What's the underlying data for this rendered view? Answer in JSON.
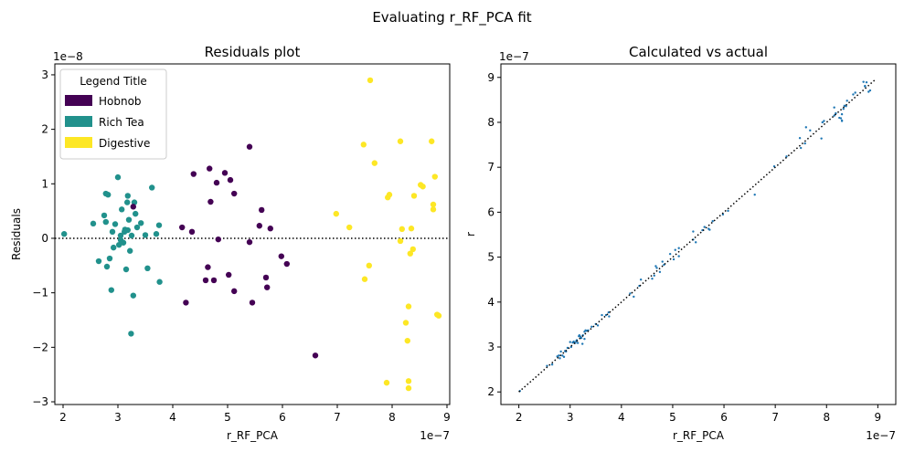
{
  "suptitle": "Evaluating r_RF_PCA fit",
  "chart_data": [
    {
      "type": "scatter",
      "title": "Residuals plot",
      "xlabel": "r_RF_PCA",
      "ylabel": "Residuals",
      "x_offset_label": "1e−7",
      "y_offset_label": "1e−8",
      "xlim": [
        1.85,
        9.05
      ],
      "ylim": [
        -3.05,
        3.2
      ],
      "xticks": [
        2,
        3,
        4,
        5,
        6,
        7,
        8,
        9
      ],
      "yticks": [
        -3,
        -2,
        -1,
        0,
        1,
        2,
        3
      ],
      "zero_line": 0,
      "grid": false,
      "legend": {
        "title": "Legend Title",
        "placement": "top-left",
        "entries": [
          {
            "label": "Hobnob",
            "color": "#440154"
          },
          {
            "label": "Rich Tea",
            "color": "#21918c"
          },
          {
            "label": "Digestive",
            "color": "#fde725"
          }
        ]
      },
      "series": [
        {
          "name": "Rich Tea",
          "color": "#21918c",
          "points": [
            [
              2.02,
              0.08
            ],
            [
              2.55,
              0.27
            ],
            [
              2.65,
              -0.42
            ],
            [
              2.75,
              0.42
            ],
            [
              2.78,
              0.3
            ],
            [
              2.78,
              0.82
            ],
            [
              2.8,
              -0.52
            ],
            [
              2.82,
              0.8
            ],
            [
              2.85,
              -0.37
            ],
            [
              2.88,
              -0.95
            ],
            [
              2.9,
              0.12
            ],
            [
              2.92,
              -0.17
            ],
            [
              2.95,
              0.26
            ],
            [
              3.0,
              1.12
            ],
            [
              3.02,
              -0.12
            ],
            [
              3.05,
              0.05
            ],
            [
              3.07,
              0.53
            ],
            [
              3.1,
              -0.08
            ],
            [
              3.12,
              0.12
            ],
            [
              3.13,
              0.16
            ],
            [
              3.15,
              -0.57
            ],
            [
              3.17,
              0.66
            ],
            [
              3.18,
              0.78
            ],
            [
              3.2,
              0.34
            ],
            [
              3.22,
              -0.23
            ],
            [
              3.24,
              -1.75
            ],
            [
              3.25,
              0.05
            ],
            [
              3.28,
              -1.05
            ],
            [
              3.3,
              0.66
            ],
            [
              3.32,
              0.45
            ],
            [
              3.35,
              0.2
            ],
            [
              3.42,
              0.28
            ],
            [
              3.5,
              0.06
            ],
            [
              3.54,
              -0.55
            ],
            [
              3.62,
              0.93
            ],
            [
              3.7,
              0.08
            ],
            [
              3.75,
              0.24
            ],
            [
              3.76,
              -0.8
            ],
            [
              3.05,
              -0.03
            ],
            [
              3.18,
              0.15
            ]
          ]
        },
        {
          "name": "Hobnob",
          "color": "#440154",
          "points": [
            [
              3.28,
              0.58
            ],
            [
              4.17,
              0.2
            ],
            [
              4.24,
              -1.18
            ],
            [
              4.35,
              0.12
            ],
            [
              4.38,
              1.18
            ],
            [
              4.6,
              -0.77
            ],
            [
              4.64,
              -0.53
            ],
            [
              4.67,
              1.28
            ],
            [
              4.69,
              0.67
            ],
            [
              4.75,
              -0.77
            ],
            [
              4.8,
              1.02
            ],
            [
              4.83,
              -0.02
            ],
            [
              4.95,
              1.2
            ],
            [
              5.02,
              -0.67
            ],
            [
              5.05,
              1.07
            ],
            [
              5.12,
              -0.97
            ],
            [
              5.12,
              0.82
            ],
            [
              5.4,
              1.68
            ],
            [
              5.4,
              -0.07
            ],
            [
              5.45,
              -1.18
            ],
            [
              5.58,
              0.23
            ],
            [
              5.62,
              0.52
            ],
            [
              5.7,
              -0.72
            ],
            [
              5.72,
              -0.9
            ],
            [
              5.78,
              0.18
            ],
            [
              5.98,
              -0.33
            ],
            [
              6.08,
              -0.47
            ],
            [
              6.6,
              -2.15
            ]
          ]
        },
        {
          "name": "Digestive",
          "color": "#fde725",
          "points": [
            [
              6.98,
              0.45
            ],
            [
              7.22,
              0.2
            ],
            [
              7.48,
              1.72
            ],
            [
              7.5,
              -0.75
            ],
            [
              7.58,
              -0.5
            ],
            [
              7.6,
              2.9
            ],
            [
              7.68,
              1.38
            ],
            [
              7.9,
              -2.65
            ],
            [
              7.92,
              0.75
            ],
            [
              7.95,
              0.8
            ],
            [
              8.15,
              1.78
            ],
            [
              8.15,
              -0.05
            ],
            [
              8.18,
              0.17
            ],
            [
              8.25,
              -1.55
            ],
            [
              8.28,
              -1.88
            ],
            [
              8.3,
              -2.62
            ],
            [
              8.3,
              -2.75
            ],
            [
              8.3,
              -1.25
            ],
            [
              8.33,
              -0.28
            ],
            [
              8.35,
              0.18
            ],
            [
              8.38,
              -0.2
            ],
            [
              8.4,
              0.78
            ],
            [
              8.52,
              0.98
            ],
            [
              8.56,
              0.95
            ],
            [
              8.72,
              1.78
            ],
            [
              8.75,
              0.62
            ],
            [
              8.75,
              0.53
            ],
            [
              8.78,
              1.13
            ],
            [
              8.82,
              -1.4
            ],
            [
              8.85,
              -1.42
            ]
          ]
        }
      ]
    },
    {
      "type": "scatter",
      "title": "Calculated vs actual",
      "xlabel": "r_RF_PCA",
      "ylabel": "r",
      "x_offset_label": "1e−7",
      "y_offset_label": "1e−7",
      "xlim": [
        1.65,
        9.35
      ],
      "ylim": [
        1.72,
        9.3
      ],
      "xticks": [
        2,
        3,
        4,
        5,
        6,
        7,
        8,
        9
      ],
      "yticks": [
        2,
        3,
        4,
        5,
        6,
        7,
        8,
        9
      ],
      "identity_line": [
        [
          2.0,
          2.0
        ],
        [
          8.95,
          8.95
        ]
      ],
      "grid": false,
      "color": "#1f77b4",
      "points": [
        [
          2.02,
          2.02
        ],
        [
          2.55,
          2.58
        ],
        [
          2.65,
          2.61
        ],
        [
          2.75,
          2.79
        ],
        [
          2.78,
          2.81
        ],
        [
          2.8,
          2.75
        ],
        [
          2.82,
          2.9
        ],
        [
          2.85,
          2.81
        ],
        [
          2.88,
          2.78
        ],
        [
          2.9,
          2.91
        ],
        [
          2.92,
          2.9
        ],
        [
          2.95,
          2.98
        ],
        [
          3.0,
          3.11
        ],
        [
          3.02,
          3.0
        ],
        [
          3.05,
          3.1
        ],
        [
          3.07,
          3.12
        ],
        [
          3.1,
          3.09
        ],
        [
          3.12,
          3.13
        ],
        [
          3.13,
          3.15
        ],
        [
          3.15,
          3.09
        ],
        [
          3.17,
          3.24
        ],
        [
          3.18,
          3.26
        ],
        [
          3.2,
          3.23
        ],
        [
          3.22,
          3.2
        ],
        [
          3.24,
          3.07
        ],
        [
          3.25,
          3.26
        ],
        [
          3.28,
          3.18
        ],
        [
          3.3,
          3.37
        ],
        [
          3.32,
          3.36
        ],
        [
          3.35,
          3.37
        ],
        [
          3.42,
          3.45
        ],
        [
          3.5,
          3.51
        ],
        [
          3.54,
          3.48
        ],
        [
          3.62,
          3.71
        ],
        [
          3.7,
          3.71
        ],
        [
          3.75,
          3.77
        ],
        [
          3.76,
          3.68
        ],
        [
          3.28,
          3.34
        ],
        [
          4.17,
          4.19
        ],
        [
          4.24,
          4.12
        ],
        [
          4.35,
          4.36
        ],
        [
          4.38,
          4.5
        ],
        [
          4.6,
          4.52
        ],
        [
          4.64,
          4.59
        ],
        [
          4.67,
          4.8
        ],
        [
          4.69,
          4.76
        ],
        [
          4.75,
          4.67
        ],
        [
          4.8,
          4.9
        ],
        [
          4.83,
          4.83
        ],
        [
          4.95,
          5.07
        ],
        [
          5.02,
          4.95
        ],
        [
          5.05,
          5.16
        ],
        [
          5.12,
          5.02
        ],
        [
          5.12,
          5.2
        ],
        [
          5.4,
          5.57
        ],
        [
          5.4,
          5.39
        ],
        [
          5.45,
          5.33
        ],
        [
          5.58,
          5.6
        ],
        [
          5.62,
          5.67
        ],
        [
          5.7,
          5.63
        ],
        [
          5.72,
          5.61
        ],
        [
          5.78,
          5.8
        ],
        [
          5.98,
          5.95
        ],
        [
          6.08,
          6.03
        ],
        [
          6.6,
          6.39
        ],
        [
          6.98,
          7.02
        ],
        [
          7.22,
          7.24
        ],
        [
          7.48,
          7.65
        ],
        [
          7.5,
          7.43
        ],
        [
          7.58,
          7.53
        ],
        [
          7.6,
          7.89
        ],
        [
          7.68,
          7.82
        ],
        [
          7.9,
          7.64
        ],
        [
          7.92,
          8.0
        ],
        [
          7.95,
          8.03
        ],
        [
          8.15,
          8.33
        ],
        [
          8.15,
          8.15
        ],
        [
          8.18,
          8.2
        ],
        [
          8.25,
          8.1
        ],
        [
          8.28,
          8.09
        ],
        [
          8.3,
          8.04
        ],
        [
          8.3,
          8.03
        ],
        [
          8.3,
          8.18
        ],
        [
          8.33,
          8.3
        ],
        [
          8.35,
          8.37
        ],
        [
          8.38,
          8.36
        ],
        [
          8.4,
          8.48
        ],
        [
          8.52,
          8.62
        ],
        [
          8.56,
          8.66
        ],
        [
          8.72,
          8.9
        ],
        [
          8.75,
          8.81
        ],
        [
          8.75,
          8.8
        ],
        [
          8.78,
          8.89
        ],
        [
          8.82,
          8.68
        ],
        [
          8.85,
          8.71
        ]
      ]
    }
  ]
}
